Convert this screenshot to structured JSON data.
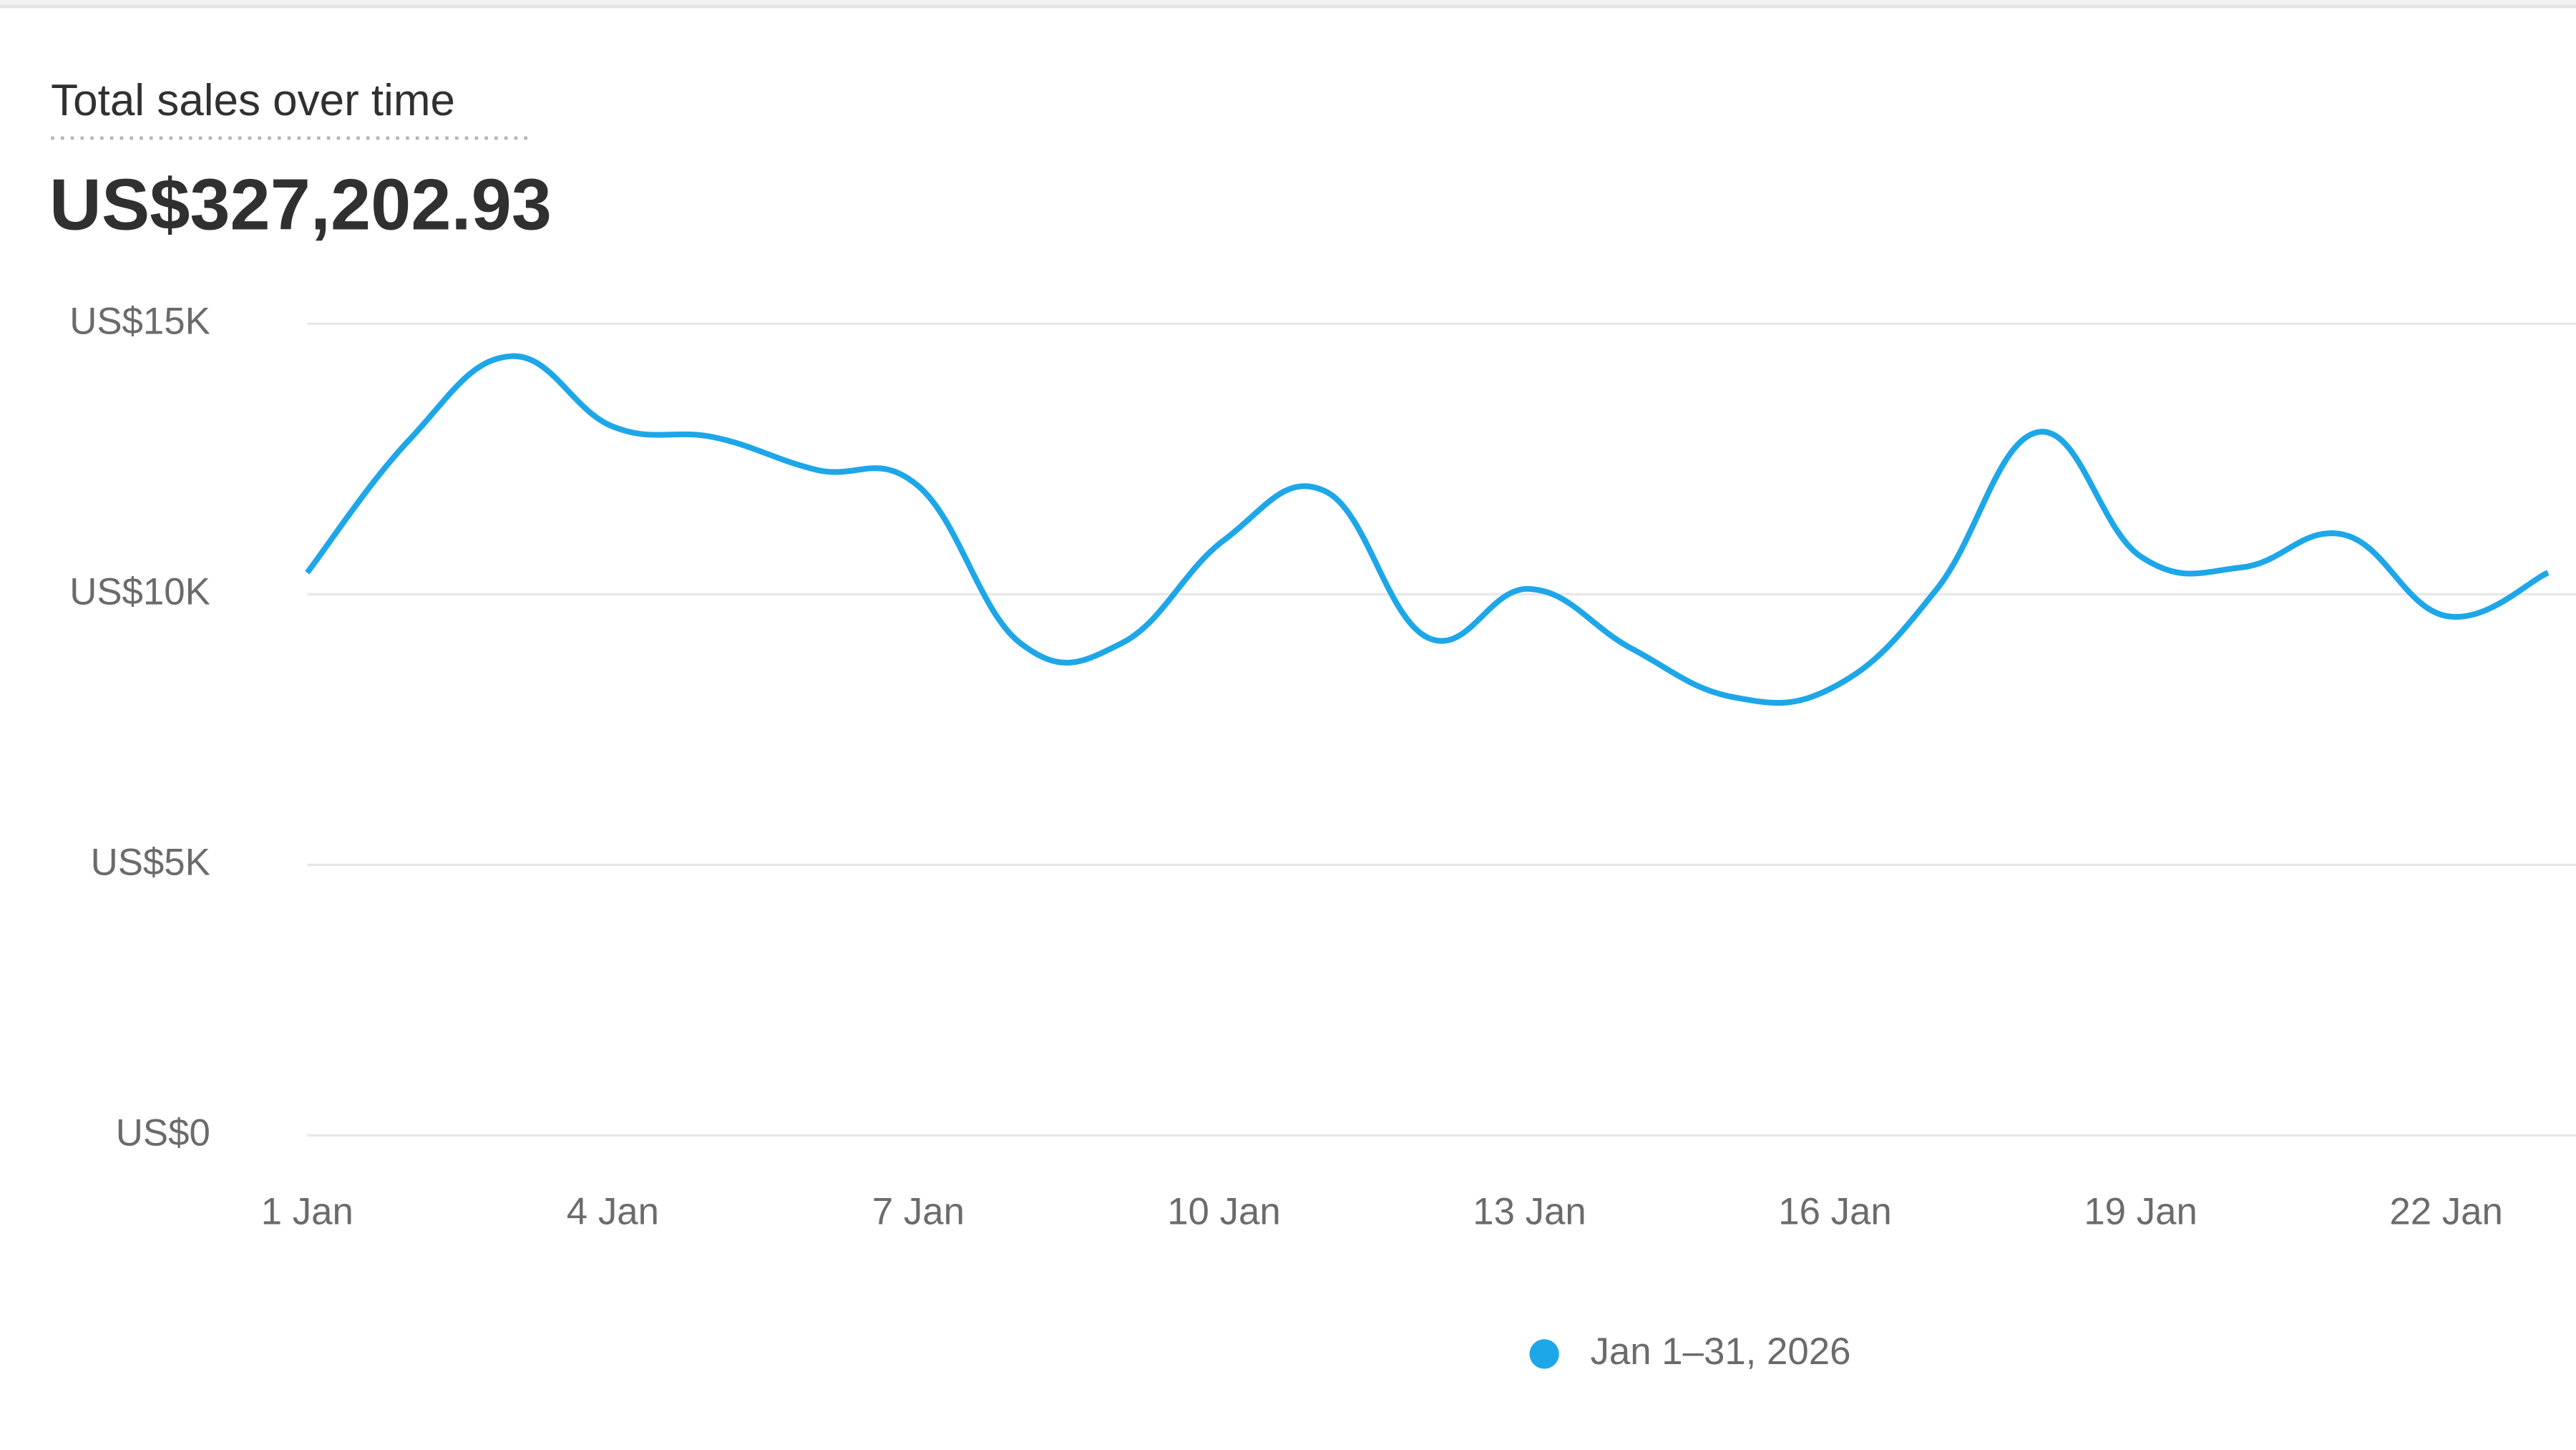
{
  "title": "Total sales over time",
  "total": "US$327,202.93",
  "chart_data": {
    "type": "line",
    "categories": [
      "1 Jan",
      null,
      null,
      "4 Jan",
      null,
      null,
      "7 Jan",
      null,
      null,
      "10 Jan",
      null,
      null,
      "13 Jan",
      null,
      null,
      "16 Jan",
      null,
      null,
      "19 Jan",
      null,
      null,
      "22 Jan",
      null
    ],
    "series": [
      {
        "name": "Jan 1–31, 2026",
        "color": "#1ea7e8",
        "values": [
          10400,
          12850,
          14400,
          13100,
          12900,
          12300,
          12000,
          9100,
          9100,
          11000,
          11900,
          9200,
          10100,
          9000,
          8100,
          8300,
          10100,
          13000,
          10700,
          10500,
          11100,
          9600,
          10400
        ]
      }
    ],
    "ylim": [
      0,
      15000
    ],
    "yticks": [
      {
        "value": 0,
        "label": "US$0"
      },
      {
        "value": 5000,
        "label": "US$5K"
      },
      {
        "value": 10000,
        "label": "US$10K"
      },
      {
        "value": 15000,
        "label": "US$15K"
      }
    ],
    "grid": true
  }
}
